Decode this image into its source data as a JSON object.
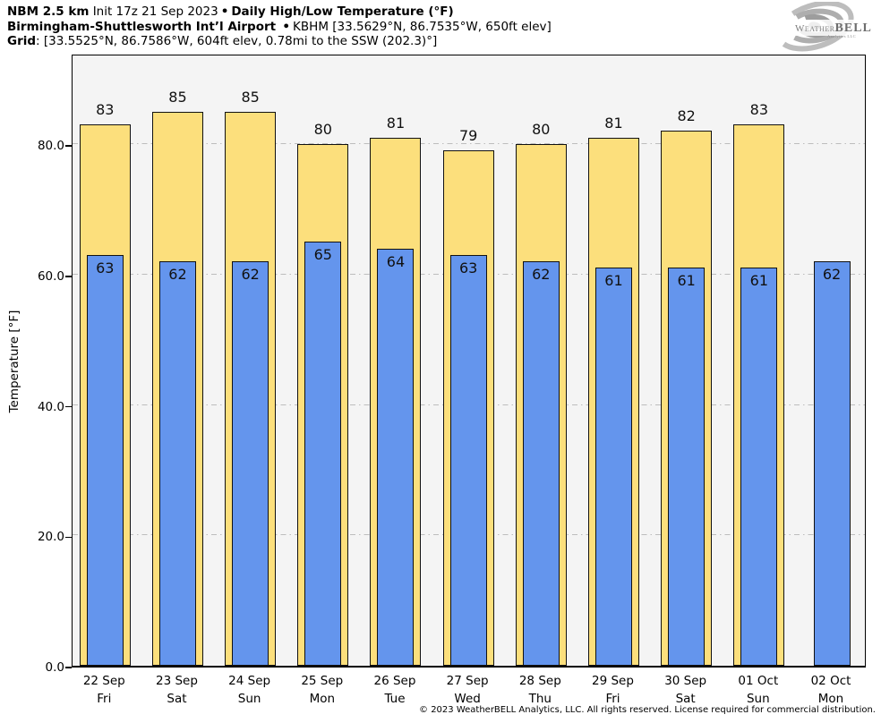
{
  "header": {
    "line1_bold1": "NBM 2.5 km",
    "line1_regular": "Init 17z 21 Sep 2023",
    "line1_sep": "•",
    "line1_bold2": "Daily High/Low Temperature (°F)",
    "line2_bold": "Birmingham-Shuttlesworth Int’l Airport",
    "line2_sep": "•",
    "line2_regular": "KBHM [33.5629°N, 86.7535°W, 650ft elev]",
    "line3_bold": "Grid",
    "line3_regular": ": [33.5525°N, 86.7586°W, 604ft elev, 0.78mi to the SSW (202.3)°]"
  },
  "logo": {
    "brand_weather": "Weather",
    "brand_bell": "BELL",
    "brand_sub": "Analytics LLC"
  },
  "chart_data": {
    "type": "bar",
    "title": "NBM 2.5 km Init 17z 21 Sep 2023 • Daily High/Low Temperature (°F)",
    "subtitle": "Birmingham-Shuttlesworth Int’l Airport • KBHM [33.5629°N, 86.7535°W, 650ft elev]",
    "xlabel": "",
    "ylabel": "Temperature [°F]",
    "ylim": [
      0,
      94
    ],
    "grid": true,
    "legend_position": "none",
    "yticks": [
      {
        "value": 0,
        "label": "0.0"
      },
      {
        "value": 20,
        "label": "20.0"
      },
      {
        "value": 40,
        "label": "40.0"
      },
      {
        "value": 60,
        "label": "60.0"
      },
      {
        "value": 80,
        "label": "80.0"
      }
    ],
    "categories": [
      {
        "date": "22 Sep",
        "day": "Fri"
      },
      {
        "date": "23 Sep",
        "day": "Sat"
      },
      {
        "date": "24 Sep",
        "day": "Sun"
      },
      {
        "date": "25 Sep",
        "day": "Mon"
      },
      {
        "date": "26 Sep",
        "day": "Tue"
      },
      {
        "date": "27 Sep",
        "day": "Wed"
      },
      {
        "date": "28 Sep",
        "day": "Thu"
      },
      {
        "date": "29 Sep",
        "day": "Fri"
      },
      {
        "date": "30 Sep",
        "day": "Sat"
      },
      {
        "date": "01 Oct",
        "day": "Sun"
      },
      {
        "date": "02 Oct",
        "day": "Mon"
      }
    ],
    "series": [
      {
        "name": "Daily High",
        "color": "#FCDF7C",
        "values": [
          83,
          85,
          85,
          80,
          81,
          79,
          80,
          81,
          82,
          83,
          null
        ]
      },
      {
        "name": "Daily Low",
        "color": "#6495ED",
        "values": [
          63,
          62,
          62,
          65,
          64,
          63,
          62,
          61,
          61,
          61,
          62
        ]
      }
    ]
  },
  "footer": {
    "copyright": "© 2023 WeatherBELL Analytics, LLC. All rights reserved. License required for commercial distribution."
  }
}
